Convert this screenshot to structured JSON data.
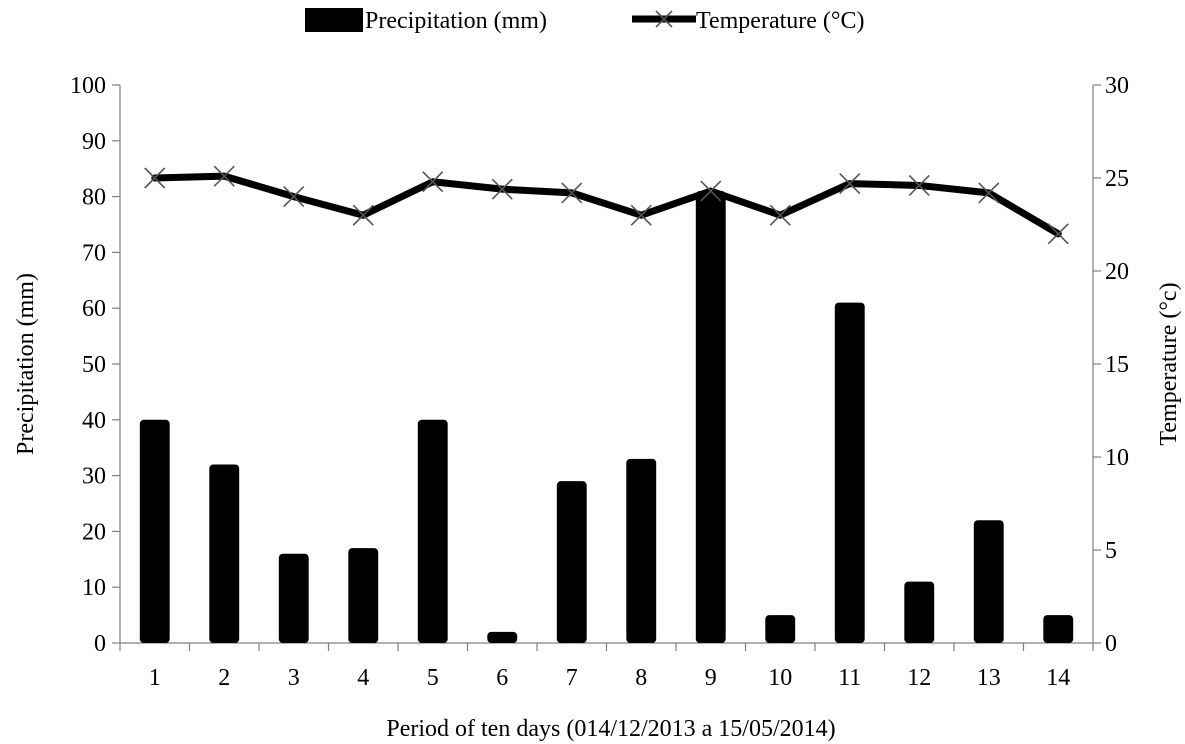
{
  "chart_data": {
    "type": "bar",
    "xlabel": "Period of ten days (014/12/2013  a 15/05/2014)",
    "ylabel": "Precipitation (mm)",
    "y2label": "Temperature (°c)",
    "categories": [
      "1",
      "2",
      "3",
      "4",
      "5",
      "6",
      "7",
      "8",
      "9",
      "10",
      "11",
      "12",
      "13",
      "14"
    ],
    "ylim": [
      0,
      100
    ],
    "y2lim": [
      0,
      30
    ],
    "yticks": [
      "0",
      "10",
      "20",
      "30",
      "40",
      "50",
      "60",
      "70",
      "80",
      "90",
      "100"
    ],
    "y2ticks": [
      "0",
      "5",
      "10",
      "15",
      "20",
      "25",
      "30"
    ],
    "grid": false,
    "legend_position": "top",
    "series": [
      {
        "name": "Precipitation (mm)",
        "type": "bar",
        "axis": "left",
        "color": "#000000",
        "values": [
          40,
          32,
          16,
          17,
          40,
          2,
          29,
          33,
          81,
          5,
          61,
          11,
          22,
          5
        ]
      },
      {
        "name": "Temperature (°C)",
        "type": "line",
        "axis": "right",
        "color": "#000000",
        "marker": "x",
        "values": [
          25.0,
          25.1,
          24.0,
          23.0,
          24.8,
          24.4,
          24.2,
          23.0,
          24.3,
          23.0,
          24.7,
          24.6,
          24.2,
          22.0
        ]
      }
    ]
  }
}
